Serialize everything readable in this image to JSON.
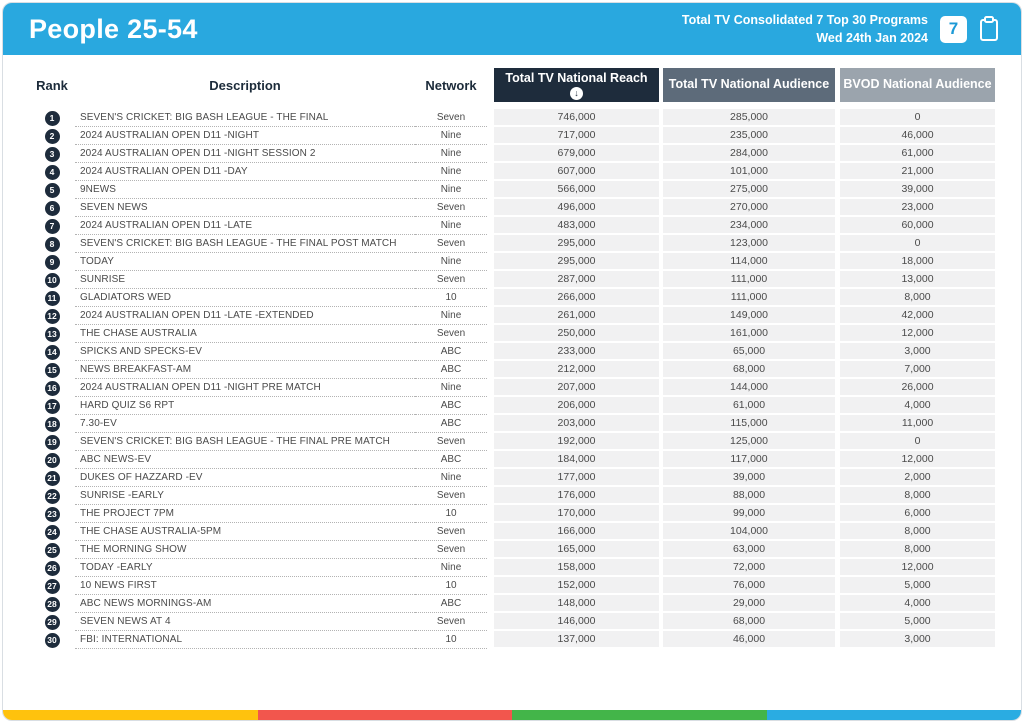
{
  "header": {
    "title": "People 25-54",
    "subtitle_line1": "Total TV Consolidated 7 Top 30 Programs",
    "subtitle_line2": "Wed 24th Jan 2024",
    "page_number": "7"
  },
  "table": {
    "columns": {
      "rank": "Rank",
      "description": "Description",
      "network": "Network",
      "reach": "Total TV National Reach",
      "audience": "Total TV National Audience",
      "bvod": "BVOD National Audience"
    },
    "sort_icon": "↓",
    "rows": [
      {
        "rank": "1",
        "description": "SEVEN'S CRICKET: BIG BASH LEAGUE - THE FINAL",
        "network": "Seven",
        "reach": "746,000",
        "audience": "285,000",
        "bvod": "0"
      },
      {
        "rank": "2",
        "description": "2024 AUSTRALIAN OPEN D11 -NIGHT",
        "network": "Nine",
        "reach": "717,000",
        "audience": "235,000",
        "bvod": "46,000"
      },
      {
        "rank": "3",
        "description": "2024 AUSTRALIAN OPEN D11 -NIGHT SESSION 2",
        "network": "Nine",
        "reach": "679,000",
        "audience": "284,000",
        "bvod": "61,000"
      },
      {
        "rank": "4",
        "description": "2024 AUSTRALIAN OPEN D11 -DAY",
        "network": "Nine",
        "reach": "607,000",
        "audience": "101,000",
        "bvod": "21,000"
      },
      {
        "rank": "5",
        "description": "9NEWS",
        "network": "Nine",
        "reach": "566,000",
        "audience": "275,000",
        "bvod": "39,000"
      },
      {
        "rank": "6",
        "description": "SEVEN NEWS",
        "network": "Seven",
        "reach": "496,000",
        "audience": "270,000",
        "bvod": "23,000"
      },
      {
        "rank": "7",
        "description": "2024 AUSTRALIAN OPEN D11 -LATE",
        "network": "Nine",
        "reach": "483,000",
        "audience": "234,000",
        "bvod": "60,000"
      },
      {
        "rank": "8",
        "description": "SEVEN'S CRICKET: BIG BASH LEAGUE - THE FINAL POST MATCH",
        "network": "Seven",
        "reach": "295,000",
        "audience": "123,000",
        "bvod": "0"
      },
      {
        "rank": "9",
        "description": "TODAY",
        "network": "Nine",
        "reach": "295,000",
        "audience": "114,000",
        "bvod": "18,000"
      },
      {
        "rank": "10",
        "description": "SUNRISE",
        "network": "Seven",
        "reach": "287,000",
        "audience": "111,000",
        "bvod": "13,000"
      },
      {
        "rank": "11",
        "description": "GLADIATORS WED",
        "network": "10",
        "reach": "266,000",
        "audience": "111,000",
        "bvod": "8,000"
      },
      {
        "rank": "12",
        "description": "2024 AUSTRALIAN OPEN D11 -LATE -EXTENDED",
        "network": "Nine",
        "reach": "261,000",
        "audience": "149,000",
        "bvod": "42,000"
      },
      {
        "rank": "13",
        "description": "THE CHASE AUSTRALIA",
        "network": "Seven",
        "reach": "250,000",
        "audience": "161,000",
        "bvod": "12,000"
      },
      {
        "rank": "14",
        "description": "SPICKS AND SPECKS-EV",
        "network": "ABC",
        "reach": "233,000",
        "audience": "65,000",
        "bvod": "3,000"
      },
      {
        "rank": "15",
        "description": "NEWS BREAKFAST-AM",
        "network": "ABC",
        "reach": "212,000",
        "audience": "68,000",
        "bvod": "7,000"
      },
      {
        "rank": "16",
        "description": "2024 AUSTRALIAN OPEN D11 -NIGHT PRE MATCH",
        "network": "Nine",
        "reach": "207,000",
        "audience": "144,000",
        "bvod": "26,000"
      },
      {
        "rank": "17",
        "description": "HARD QUIZ S6 RPT",
        "network": "ABC",
        "reach": "206,000",
        "audience": "61,000",
        "bvod": "4,000"
      },
      {
        "rank": "18",
        "description": "7.30-EV",
        "network": "ABC",
        "reach": "203,000",
        "audience": "115,000",
        "bvod": "11,000"
      },
      {
        "rank": "19",
        "description": "SEVEN'S CRICKET: BIG BASH LEAGUE - THE FINAL PRE MATCH",
        "network": "Seven",
        "reach": "192,000",
        "audience": "125,000",
        "bvod": "0"
      },
      {
        "rank": "20",
        "description": "ABC NEWS-EV",
        "network": "ABC",
        "reach": "184,000",
        "audience": "117,000",
        "bvod": "12,000"
      },
      {
        "rank": "21",
        "description": "DUKES OF HAZZARD -EV",
        "network": "Nine",
        "reach": "177,000",
        "audience": "39,000",
        "bvod": "2,000"
      },
      {
        "rank": "22",
        "description": "SUNRISE -EARLY",
        "network": "Seven",
        "reach": "176,000",
        "audience": "88,000",
        "bvod": "8,000"
      },
      {
        "rank": "23",
        "description": "THE PROJECT 7PM",
        "network": "10",
        "reach": "170,000",
        "audience": "99,000",
        "bvod": "6,000"
      },
      {
        "rank": "24",
        "description": "THE CHASE AUSTRALIA-5PM",
        "network": "Seven",
        "reach": "166,000",
        "audience": "104,000",
        "bvod": "8,000"
      },
      {
        "rank": "25",
        "description": "THE MORNING SHOW",
        "network": "Seven",
        "reach": "165,000",
        "audience": "63,000",
        "bvod": "8,000"
      },
      {
        "rank": "26",
        "description": "TODAY -EARLY",
        "network": "Nine",
        "reach": "158,000",
        "audience": "72,000",
        "bvod": "12,000"
      },
      {
        "rank": "27",
        "description": "10 NEWS FIRST",
        "network": "10",
        "reach": "152,000",
        "audience": "76,000",
        "bvod": "5,000"
      },
      {
        "rank": "28",
        "description": "ABC NEWS MORNINGS-AM",
        "network": "ABC",
        "reach": "148,000",
        "audience": "29,000",
        "bvod": "4,000"
      },
      {
        "rank": "29",
        "description": "SEVEN NEWS AT 4",
        "network": "Seven",
        "reach": "146,000",
        "audience": "68,000",
        "bvod": "5,000"
      },
      {
        "rank": "30",
        "description": "FBI: INTERNATIONAL",
        "network": "10",
        "reach": "137,000",
        "audience": "46,000",
        "bvod": "3,000"
      }
    ]
  },
  "colors": {
    "topbar": "#29a8df",
    "reach_header": "#1e2c3c",
    "audience_header": "#5d6b7a",
    "bvod_header": "#9ba4ad"
  },
  "footer": {
    "stripe_colors": [
      "#ffc20d",
      "#f2564d",
      "#43b549",
      "#2aace2"
    ]
  }
}
